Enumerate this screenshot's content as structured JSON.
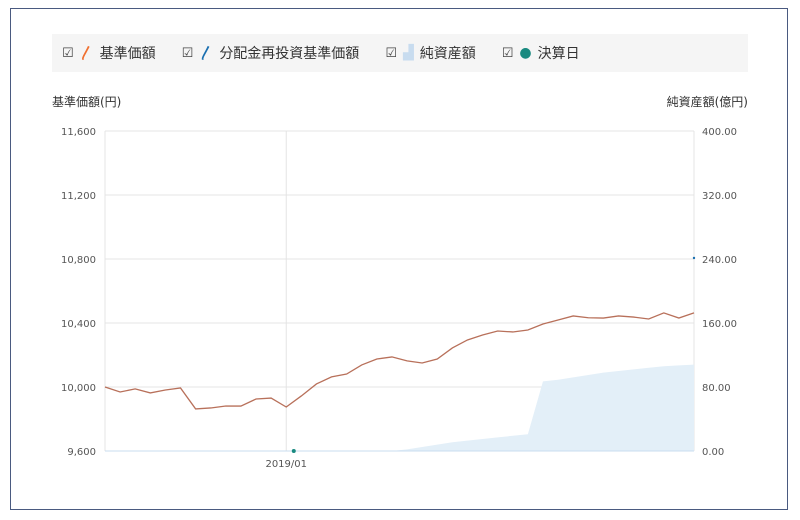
{
  "legend": [
    {
      "label": "基準価額",
      "icon": "orange-line-icon",
      "color": "#f07030",
      "checked": true
    },
    {
      "label": "分配金再投資基準価額",
      "icon": "blue-line-icon",
      "color": "#1a6fb0",
      "checked": true
    },
    {
      "label": "純資産額",
      "icon": "area-icon",
      "color": "#d4e6f4",
      "checked": true
    },
    {
      "label": "決算日",
      "icon": "dot-icon",
      "color": "#1a8a80",
      "checked": true
    }
  ],
  "chart_data": {
    "type": "line",
    "ylabel_left": "基準価額(円)",
    "ylabel_right": "純資産額(億円)",
    "ylim_left": [
      9600,
      11600
    ],
    "yticks_left": [
      "9,600",
      "10,000",
      "10,400",
      "10,800",
      "11,200",
      "11,600"
    ],
    "ylim_right": [
      0,
      400
    ],
    "yticks_right": [
      "0.00",
      "80.00",
      "160.00",
      "240.00",
      "320.00",
      "400.00"
    ],
    "xticks": [
      {
        "index": 12,
        "label": "2019/01"
      }
    ],
    "settlement_dates": [
      {
        "index": 12.5
      }
    ],
    "series": [
      {
        "name": "基準価額",
        "axis": "left",
        "color": "#b8705a",
        "values": [
          10000,
          9969,
          9988,
          9963,
          9981,
          9994,
          9863,
          9869,
          9881,
          9881,
          9925,
          9931,
          9875,
          9944,
          10019,
          10063,
          10081,
          10138,
          10175,
          10188,
          10163,
          10150,
          10175,
          10244,
          10294,
          10325,
          10350,
          10344,
          10356,
          10394,
          10419,
          10444,
          10433,
          10431,
          10444,
          10437,
          10425,
          10463,
          10431,
          10463
        ]
      },
      {
        "name": "純資産額",
        "axis": "right",
        "type": "area",
        "color": "#e3eff8",
        "values": [
          0,
          0,
          0,
          0,
          0,
          0,
          0,
          0,
          0,
          0,
          0,
          0,
          0,
          0,
          0,
          0,
          0,
          0,
          0,
          0,
          2,
          5,
          8,
          11,
          13,
          15,
          17,
          19,
          21,
          87,
          89,
          92,
          95,
          98,
          100,
          102,
          104,
          106,
          107,
          108
        ]
      }
    ],
    "grid": true
  }
}
